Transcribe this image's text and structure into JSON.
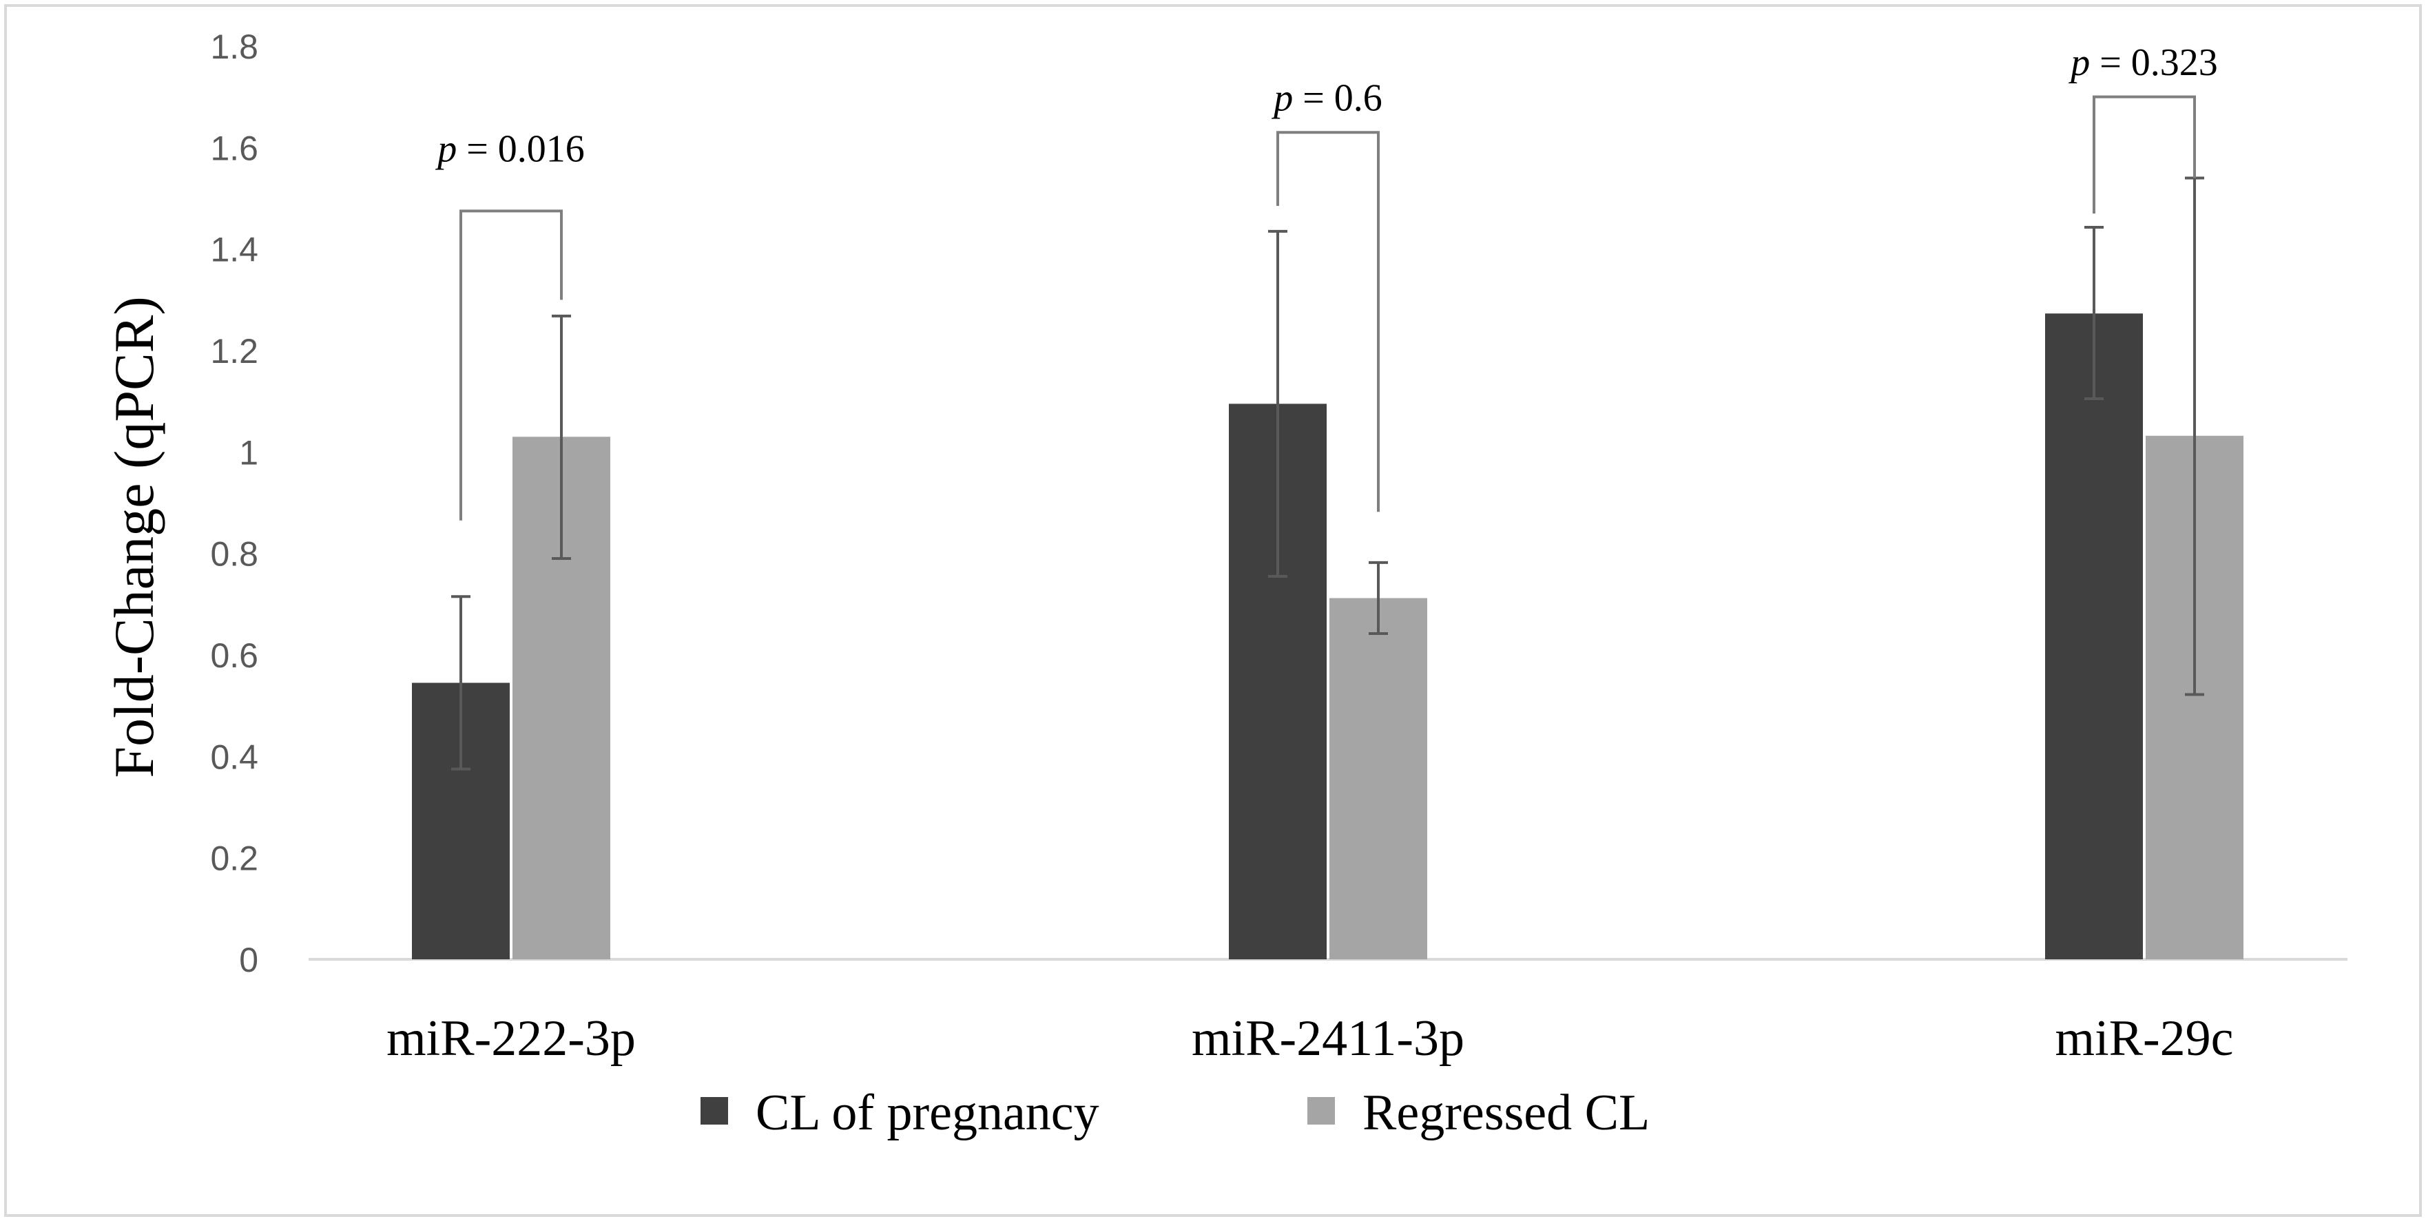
{
  "chart_data": {
    "type": "bar",
    "title": "",
    "xlabel": "",
    "ylabel": "Fold-Change (qPCR)",
    "ylim": [
      0,
      1.8
    ],
    "yticks": [
      0,
      0.2,
      0.4,
      0.6,
      0.8,
      1,
      1.2,
      1.4,
      1.6,
      1.8
    ],
    "ytick_labels": [
      "0",
      "0.2",
      "0.4",
      "0.6",
      "0.8",
      "1",
      "1.2",
      "1.4",
      "1.6",
      "1.8"
    ],
    "grid": false,
    "legend_position": "bottom-center",
    "categories": [
      "miR-222-3p",
      "miR-2411-3p",
      "miR-29c"
    ],
    "series": [
      {
        "name": "CL of pregnancy",
        "color": "#404040",
        "values": [
          0.545,
          1.095,
          1.273
        ],
        "error_low": [
          0.375,
          0.755,
          1.105
        ],
        "error_high": [
          0.715,
          1.435,
          1.443
        ]
      },
      {
        "name": "Regressed CL",
        "color": "#a5a5a5",
        "values": [
          1.03,
          0.712,
          1.032
        ],
        "error_low": [
          0.79,
          0.642,
          0.522
        ],
        "error_high": [
          1.268,
          0.782,
          1.54
        ]
      }
    ],
    "annotations": [
      {
        "category": "miR-222-3p",
        "p_symbol": "p",
        "p_value": " = 0.016",
        "bracket_left": 0.865,
        "bracket_right": 1.3,
        "bracket_top": 1.475,
        "label_y": 1.6
      },
      {
        "category": "miR-2411-3p",
        "p_symbol": "p",
        "p_value": " = 0.6",
        "bracket_left": 1.485,
        "bracket_right": 0.882,
        "bracket_top": 1.63,
        "label_y": 1.7
      },
      {
        "category": "miR-29c",
        "p_symbol": "p",
        "p_value": " = 0.323",
        "bracket_left": 1.47,
        "bracket_right": 1.54,
        "bracket_top": 1.7,
        "label_y": 1.77
      }
    ]
  }
}
